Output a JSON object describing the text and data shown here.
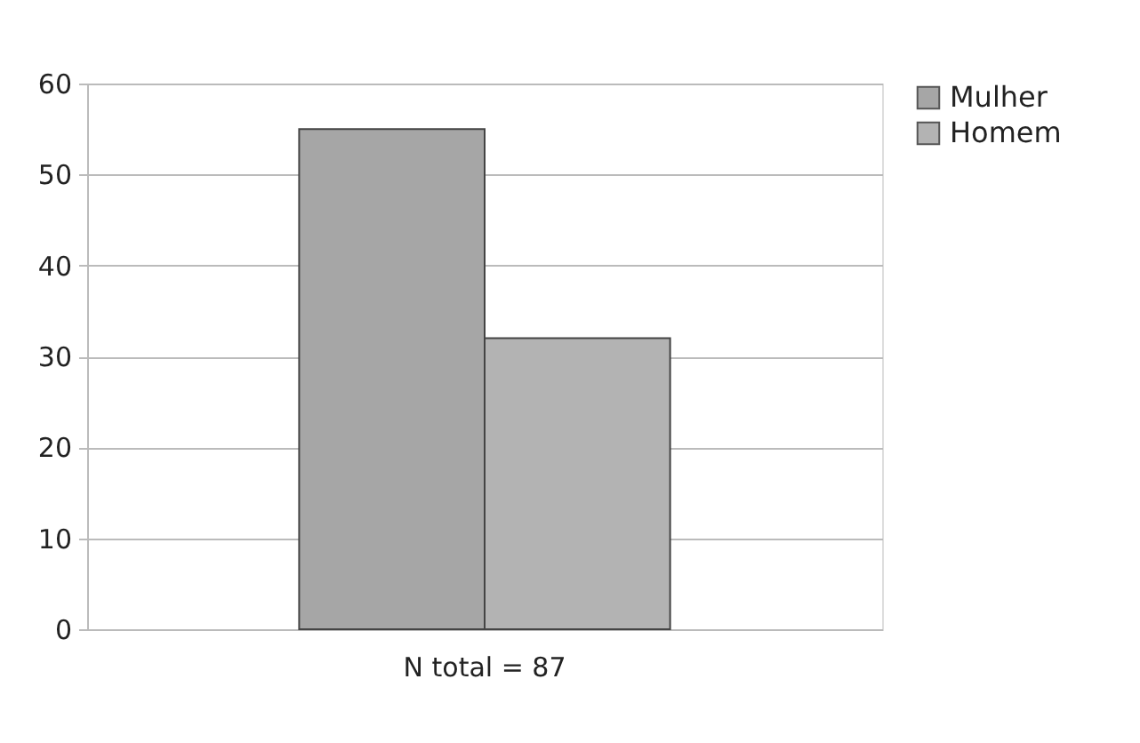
{
  "chart_data": {
    "type": "bar",
    "categories": [
      "N total = 87"
    ],
    "series": [
      {
        "name": "Mulher",
        "color": "#a6a6a6",
        "values": [
          55
        ]
      },
      {
        "name": "Homem",
        "color": "#b3b3b3",
        "values": [
          32
        ]
      }
    ],
    "ylim": [
      0,
      60
    ],
    "yticks": [
      0,
      10,
      20,
      30,
      40,
      50,
      60
    ],
    "grid": "y",
    "legend": "right"
  }
}
